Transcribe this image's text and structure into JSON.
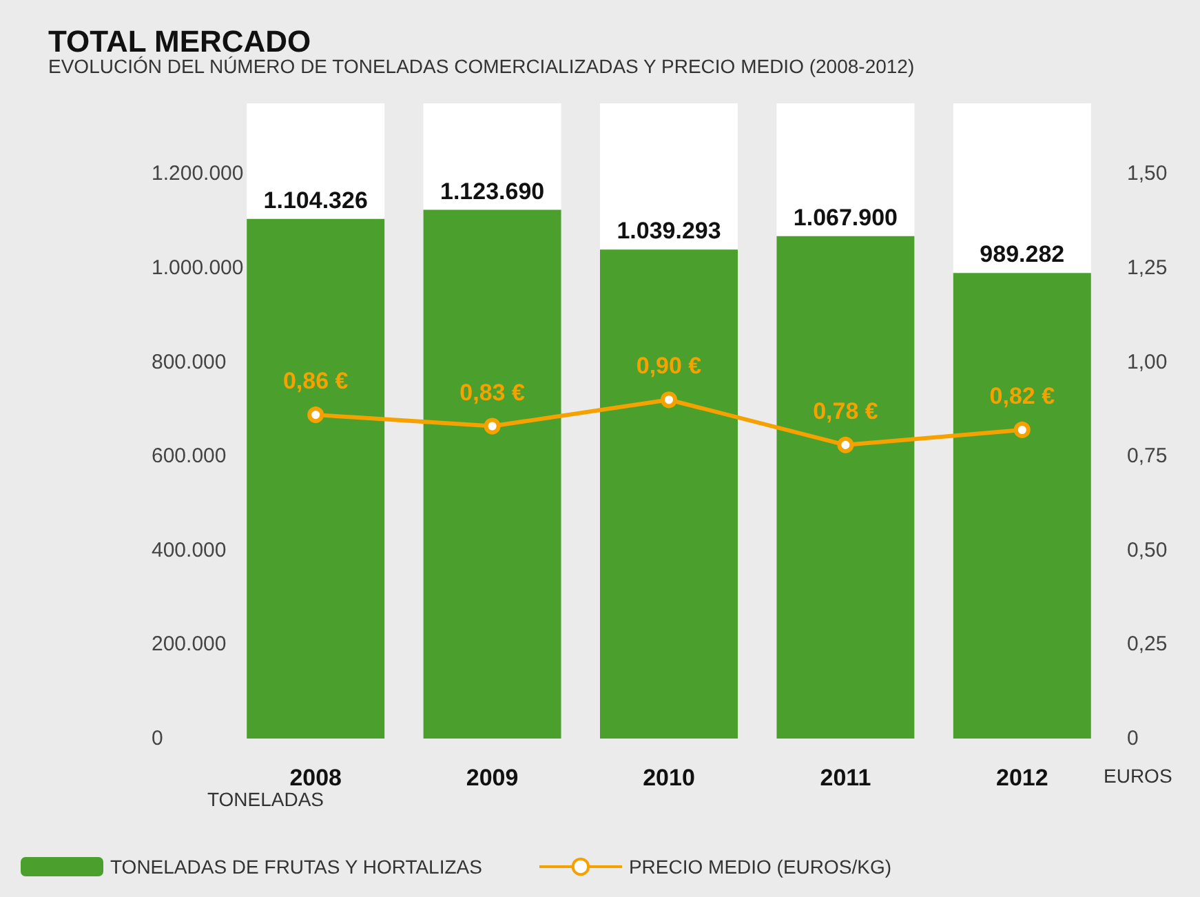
{
  "chart_data": {
    "type": "bar",
    "title": "TOTAL MERCADO",
    "subtitle": "EVOLUCIÓN DEL NÚMERO DE TONELADAS COMERCIALIZADAS Y PRECIO MEDIO (2008-2012)",
    "ylabel": "TONELADAS",
    "y2label": "EUROS",
    "categories": [
      "2008",
      "2009",
      "2010",
      "2011",
      "2012"
    ],
    "series": [
      {
        "name": "TONELADAS DE FRUTAS Y HORTALIZAS",
        "color": "#4b9f2c",
        "values": [
          1104326,
          1123690,
          1039293,
          1067900,
          989282
        ],
        "value_labels": [
          "1.104.326",
          "1.123.690",
          "1.039.293",
          "1.067.900",
          "989.282"
        ]
      },
      {
        "name": "PRECIO MEDIO (EUROS/KG)",
        "type": "line",
        "axis": "y2",
        "color": "#f5a200",
        "values": [
          0.86,
          0.83,
          0.9,
          0.78,
          0.82
        ],
        "value_labels": [
          "0,86 €",
          "0,83 €",
          "0,90 €",
          "0,78 €",
          "0,82 €"
        ]
      }
    ],
    "ylim": [
      0,
      1350000
    ],
    "yticks": [
      {
        "value": 0,
        "label": "0"
      },
      {
        "value": 200000,
        "label": "200.000"
      },
      {
        "value": 400000,
        "label": "400.000"
      },
      {
        "value": 600000,
        "label": "600.000"
      },
      {
        "value": 800000,
        "label": "800.000"
      },
      {
        "value": 1000000,
        "label": "1.000.000"
      },
      {
        "value": 1200000,
        "label": "1.200.000"
      }
    ],
    "y2lim": [
      0,
      1.6875
    ],
    "y2ticks": [
      {
        "value": 0,
        "label": "0"
      },
      {
        "value": 0.25,
        "label": "0,25"
      },
      {
        "value": 0.5,
        "label": "0,50"
      },
      {
        "value": 0.75,
        "label": "0,75"
      },
      {
        "value": 1,
        "label": "1,00"
      },
      {
        "value": 1.25,
        "label": "1,25"
      },
      {
        "value": 1.5,
        "label": "1,50"
      }
    ],
    "legend": "bottom",
    "marker": "circle",
    "line_style": "solid",
    "grid": false
  }
}
